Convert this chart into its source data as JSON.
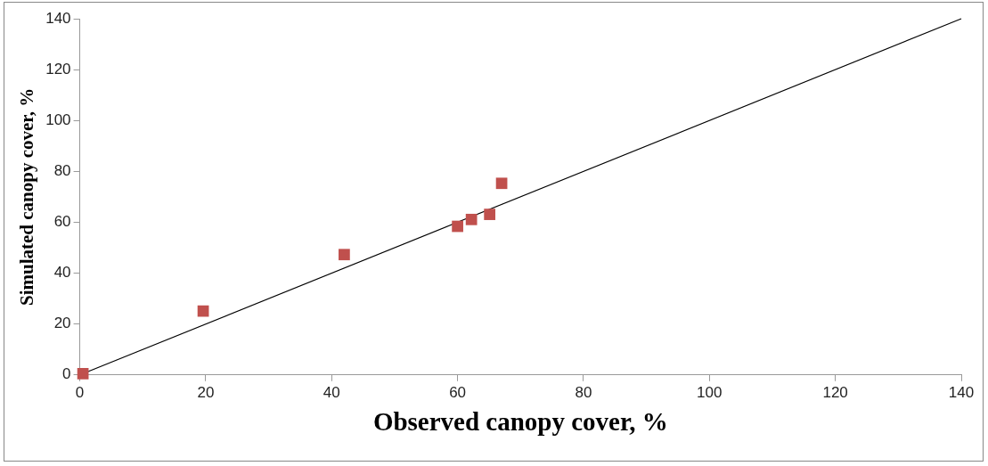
{
  "chart_data": {
    "type": "scatter",
    "xlabel": "Observed canopy cover, %",
    "ylabel": "Simulated canopy cover, %",
    "xlim": [
      0,
      140
    ],
    "xticks": [
      0,
      20,
      40,
      60,
      80,
      100,
      120,
      140
    ],
    "ylim": [
      0,
      140
    ],
    "yticks": [
      0,
      20,
      40,
      60,
      80,
      100,
      120,
      140
    ],
    "grid": false,
    "legend": false,
    "marker": "square",
    "series": [
      {
        "type": "scatter",
        "color": "#c0504d",
        "x": [
          0.5,
          19.6,
          42.0,
          60.0,
          62.2,
          65.1,
          67.0
        ],
        "values": [
          0.5,
          25.1,
          47.3,
          58.4,
          61.1,
          63.1,
          75.3
        ]
      },
      {
        "type": "line",
        "color": "#000000",
        "x": [
          0,
          140
        ],
        "values": [
          0,
          140
        ],
        "marker": "none",
        "line_style": "solid"
      }
    ]
  }
}
